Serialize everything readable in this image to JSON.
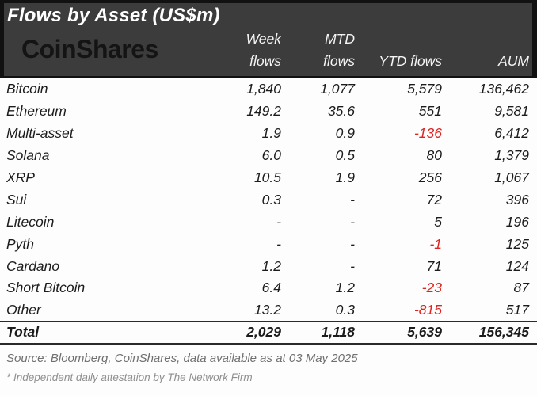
{
  "header": {
    "title": "Flows by Asset (US$m)",
    "logo": "CoinShares",
    "columns": [
      {
        "key": "week",
        "line1": "Week",
        "line2": "flows"
      },
      {
        "key": "mtd",
        "line1": "MTD",
        "line2": "flows"
      },
      {
        "key": "ytd",
        "line1": "",
        "line2": "YTD flows"
      },
      {
        "key": "aum",
        "line1": "",
        "line2": "AUM"
      }
    ]
  },
  "table": {
    "rows": [
      {
        "asset": "Bitcoin",
        "week": "1,840",
        "mtd": "1,077",
        "ytd": "5,579",
        "aum": "136,462"
      },
      {
        "asset": "Ethereum",
        "week": "149.2",
        "mtd": "35.6",
        "ytd": "551",
        "aum": "9,581"
      },
      {
        "asset": "Multi-asset",
        "week": "1.9",
        "mtd": "0.9",
        "ytd": "-136",
        "aum": "6,412"
      },
      {
        "asset": "Solana",
        "week": "6.0",
        "mtd": "0.5",
        "ytd": "80",
        "aum": "1,379"
      },
      {
        "asset": "XRP",
        "week": "10.5",
        "mtd": "1.9",
        "ytd": "256",
        "aum": "1,067"
      },
      {
        "asset": "Sui",
        "week": "0.3",
        "mtd": "-",
        "ytd": "72",
        "aum": "396"
      },
      {
        "asset": "Litecoin",
        "week": "-",
        "mtd": "-",
        "ytd": "5",
        "aum": "196"
      },
      {
        "asset": "Pyth",
        "week": "-",
        "mtd": "-",
        "ytd": "-1",
        "aum": "125"
      },
      {
        "asset": "Cardano",
        "week": "1.2",
        "mtd": "-",
        "ytd": "71",
        "aum": "124"
      },
      {
        "asset": "Short Bitcoin",
        "week": "6.4",
        "mtd": "1.2",
        "ytd": "-23",
        "aum": "87"
      },
      {
        "asset": "Other",
        "week": "13.2",
        "mtd": "0.3",
        "ytd": "-815",
        "aum": "517"
      }
    ],
    "total": {
      "asset": "Total",
      "week": "2,029",
      "mtd": "1,118",
      "ytd": "5,639",
      "aum": "156,345"
    }
  },
  "footnotes": {
    "source": "Source: Bloomberg, CoinShares, data available as at 03 May 2025",
    "attestation": "* Independent daily attestation by The Network Firm"
  },
  "colors": {
    "header_background": "#3c3c3c",
    "header_border": "#111111",
    "title_text": "#ffffff",
    "logo_text": "#141414",
    "body_text": "#1c1c1c",
    "negative_value": "#dd2420",
    "footnote_text": "#6f6f6f"
  }
}
